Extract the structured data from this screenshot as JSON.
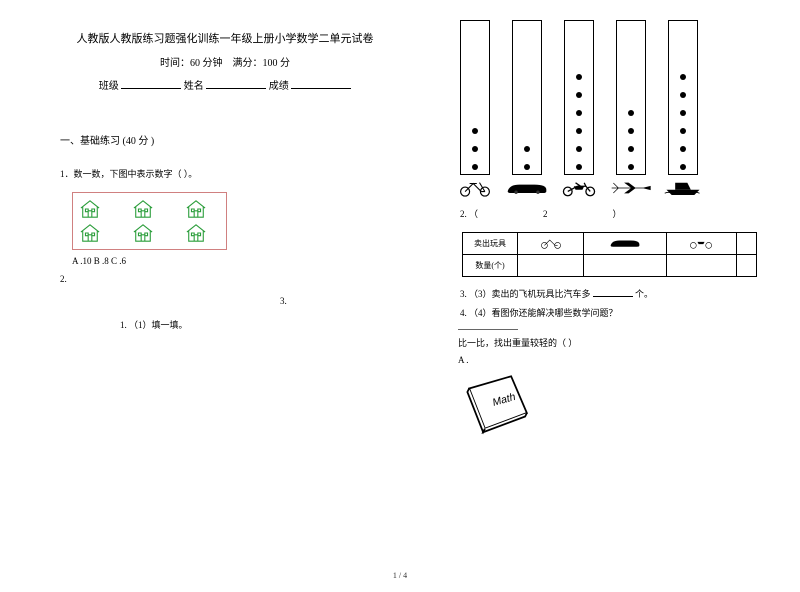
{
  "header": {
    "title": "人教版人教版练习题强化训练一年级上册小学数学二单元试卷",
    "time_label": "时间：",
    "time_value": "60 分钟",
    "full_mark_label": "满分：",
    "full_mark_value": "100 分",
    "class_label": "班级",
    "name_label": "姓名",
    "score_label": "成绩"
  },
  "section1": {
    "heading": "一、基础练习 (40 分 )",
    "q1_text": "1．数一数，下图中表示数字（            ）。",
    "q1_choices": "A .10   B .8   C .6",
    "q2_label": "2.",
    "q3_label": "3.",
    "q2_sub1": "1.   （1）填一填。"
  },
  "tally": {
    "heights": [
      155,
      155,
      155,
      155,
      155
    ],
    "counts": [
      3,
      2,
      6,
      4,
      6
    ],
    "bg": "#ffffff",
    "border": "#000000",
    "dot_color": "#000000"
  },
  "q2_right": {
    "num": "2.   （",
    "num_mid": "2",
    "num_end": "）"
  },
  "toy_table": {
    "row1_label": "卖出玩具",
    "row2_label": "数量(个)"
  },
  "q3_text": "3.   （3）卖出的飞机玩具比汽车多",
  "q3_tail": "个。",
  "q4_text": "4.   （4）看图你还能解决哪些数学问题？",
  "compare": {
    "heading": "比一比，找出重量较轻的（      ）",
    "opt_a": "A ."
  },
  "book_label": "Math",
  "page_num": "1 / 4",
  "colors": {
    "house_stroke": "#2a9d3a",
    "house_box_border": "#d08080"
  }
}
